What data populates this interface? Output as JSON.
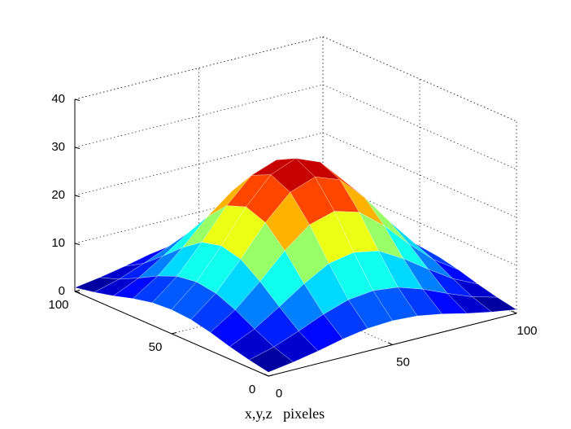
{
  "chart_data": {
    "type": "surface",
    "x": [
      0,
      10,
      20,
      30,
      40,
      50,
      60,
      70,
      80,
      90,
      100
    ],
    "y": [
      0,
      10,
      20,
      30,
      40,
      50,
      60,
      70,
      80,
      90,
      100
    ],
    "z": [
      [
        0.8,
        1.6,
        2.6,
        3.8,
        4.7,
        5.0,
        4.7,
        3.8,
        2.6,
        1.6,
        0.8
      ],
      [
        1.6,
        3.0,
        5.0,
        7.2,
        8.9,
        9.5,
        8.9,
        7.2,
        5.0,
        3.0,
        1.6
      ],
      [
        2.6,
        5.0,
        8.3,
        11.8,
        14.7,
        15.7,
        14.7,
        11.8,
        8.3,
        5.0,
        2.6
      ],
      [
        3.8,
        7.2,
        11.8,
        16.9,
        21.0,
        22.5,
        21.0,
        16.9,
        11.8,
        7.2,
        3.8
      ],
      [
        4.7,
        8.9,
        14.7,
        21.0,
        26.0,
        27.9,
        26.0,
        21.0,
        14.7,
        8.9,
        4.7
      ],
      [
        5.0,
        9.5,
        15.7,
        22.5,
        27.9,
        30.0,
        27.9,
        22.5,
        15.7,
        9.5,
        5.0
      ],
      [
        4.7,
        8.9,
        14.7,
        21.0,
        26.0,
        27.9,
        26.0,
        21.0,
        14.7,
        8.9,
        4.7
      ],
      [
        3.8,
        7.2,
        11.8,
        16.9,
        21.0,
        22.5,
        21.0,
        16.9,
        11.8,
        7.2,
        3.8
      ],
      [
        2.6,
        5.0,
        8.3,
        11.8,
        14.7,
        15.7,
        14.7,
        11.8,
        8.3,
        5.0,
        2.6
      ],
      [
        1.6,
        3.0,
        5.0,
        7.2,
        8.9,
        9.5,
        8.9,
        7.2,
        5.0,
        3.0,
        1.6
      ],
      [
        0.8,
        1.6,
        2.6,
        3.8,
        4.7,
        5.0,
        4.7,
        3.8,
        2.6,
        1.6,
        0.8
      ]
    ],
    "xlim": [
      0,
      100
    ],
    "ylim": [
      0,
      100
    ],
    "zlim": [
      0,
      40
    ],
    "xticks": [
      0,
      50,
      100
    ],
    "yticks": [
      0,
      50,
      100
    ],
    "zticks": [
      0,
      10,
      20,
      30,
      40
    ],
    "xlabel": "x,y,z   pixeles",
    "colormap": "jet",
    "grid": true
  }
}
